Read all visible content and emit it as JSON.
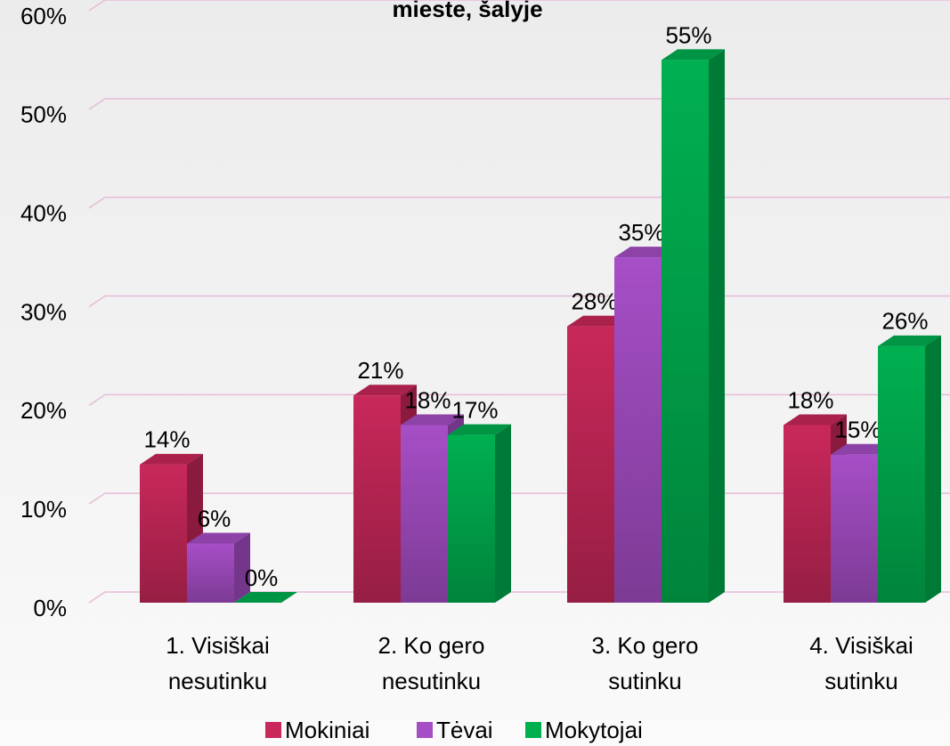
{
  "chart_data": {
    "type": "bar3d",
    "title": "mieste, šalyje",
    "categories": [
      "1. Visiškai nesutinku",
      "2. Ko gero nesutinku",
      "3. Ko gero sutinku",
      "4. Visiškai sutinku"
    ],
    "series": [
      {
        "name": "Mokiniai",
        "color": "#c8285a",
        "values": [
          14,
          21,
          28,
          18
        ],
        "value_labels": [
          "14%",
          "21%",
          "28%",
          "18%"
        ]
      },
      {
        "name": "Tėvai",
        "color": "#a64ec6",
        "values": [
          6,
          18,
          35,
          15
        ],
        "value_labels": [
          "6%",
          "18%",
          "35%",
          "15%"
        ]
      },
      {
        "name": "Mokytojai",
        "color": "#00b050",
        "values": [
          0,
          17,
          55,
          26
        ],
        "value_labels": [
          "0%",
          "17%",
          "55%",
          "26%"
        ]
      }
    ],
    "ylim": [
      0,
      60
    ],
    "yticks": [
      {
        "value": 0,
        "label": "0%"
      },
      {
        "value": 10,
        "label": "10%"
      },
      {
        "value": 20,
        "label": "20%"
      },
      {
        "value": 30,
        "label": "30%"
      },
      {
        "value": 40,
        "label": "40%"
      },
      {
        "value": 50,
        "label": "50%"
      },
      {
        "value": 60,
        "label": "60%"
      }
    ],
    "grid": true,
    "legend": "bottom"
  }
}
